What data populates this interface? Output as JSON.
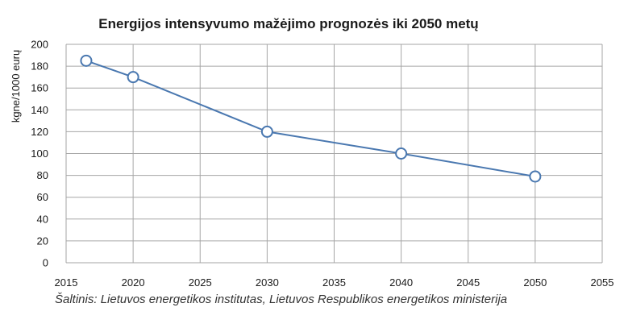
{
  "chart_data": {
    "type": "line",
    "title": "Energijos intensyvumo mažėjimo prognozės iki 2050 metų",
    "ylabel": "kgne/1000 eurų",
    "xlabel": "",
    "xlim": [
      2015,
      2055
    ],
    "ylim": [
      0,
      200
    ],
    "x_ticks": [
      "2015",
      "2020",
      "2025",
      "2030",
      "2035",
      "2040",
      "2045",
      "2050",
      "2055"
    ],
    "y_ticks": [
      "0",
      "20",
      "40",
      "60",
      "80",
      "100",
      "120",
      "140",
      "160",
      "180",
      "200"
    ],
    "series": [
      {
        "x": [
          2016.5,
          2020,
          2030,
          2040,
          2050
        ],
        "values": [
          185,
          170,
          120,
          100,
          79
        ]
      }
    ],
    "grid": true,
    "colors": {
      "line": "#4a78b0",
      "marker_fill": "#ffffff",
      "grid": "#a6a6a6"
    }
  },
  "source": "Šaltinis: Lietuvos energetikos institutas, Lietuvos Respublikos energetikos ministerija"
}
